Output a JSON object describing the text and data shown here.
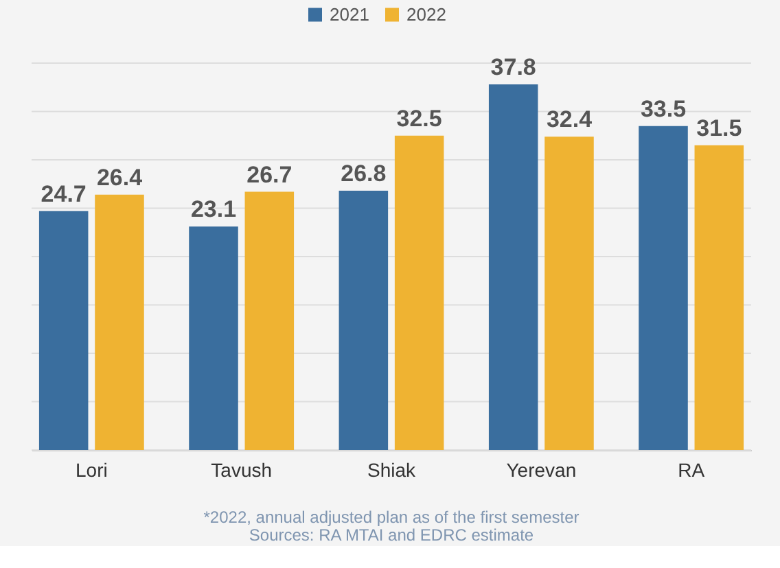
{
  "chart_data": {
    "type": "bar",
    "categories": [
      "Lori",
      "Tavush",
      "Shiak",
      "Yerevan",
      "RA"
    ],
    "series": [
      {
        "name": "2021",
        "color": "#3a6e9e",
        "values": [
          24.7,
          23.1,
          26.8,
          37.8,
          33.5
        ]
      },
      {
        "name": "2022",
        "color": "#efb332",
        "values": [
          26.4,
          26.7,
          32.5,
          32.4,
          31.5
        ]
      }
    ],
    "data_labels": true,
    "ylim": [
      0,
      40
    ],
    "yticks": [
      {
        "value": 0,
        "label": null
      },
      {
        "value": 5,
        "label": null
      },
      {
        "value": 10,
        "label": null
      },
      {
        "value": 15,
        "label": null
      },
      {
        "value": 20,
        "label": null
      },
      {
        "value": 25,
        "label": null
      },
      {
        "value": 30,
        "label": null
      },
      {
        "value": 35,
        "label": null
      },
      {
        "value": 40,
        "label": null
      }
    ],
    "tick_labels": "x",
    "grid": "y",
    "legend": "top",
    "annotations": [
      "*2022, annual adjusted plan as of the first semester",
      "Sources: RA MTAI and EDRC estimate"
    ]
  }
}
